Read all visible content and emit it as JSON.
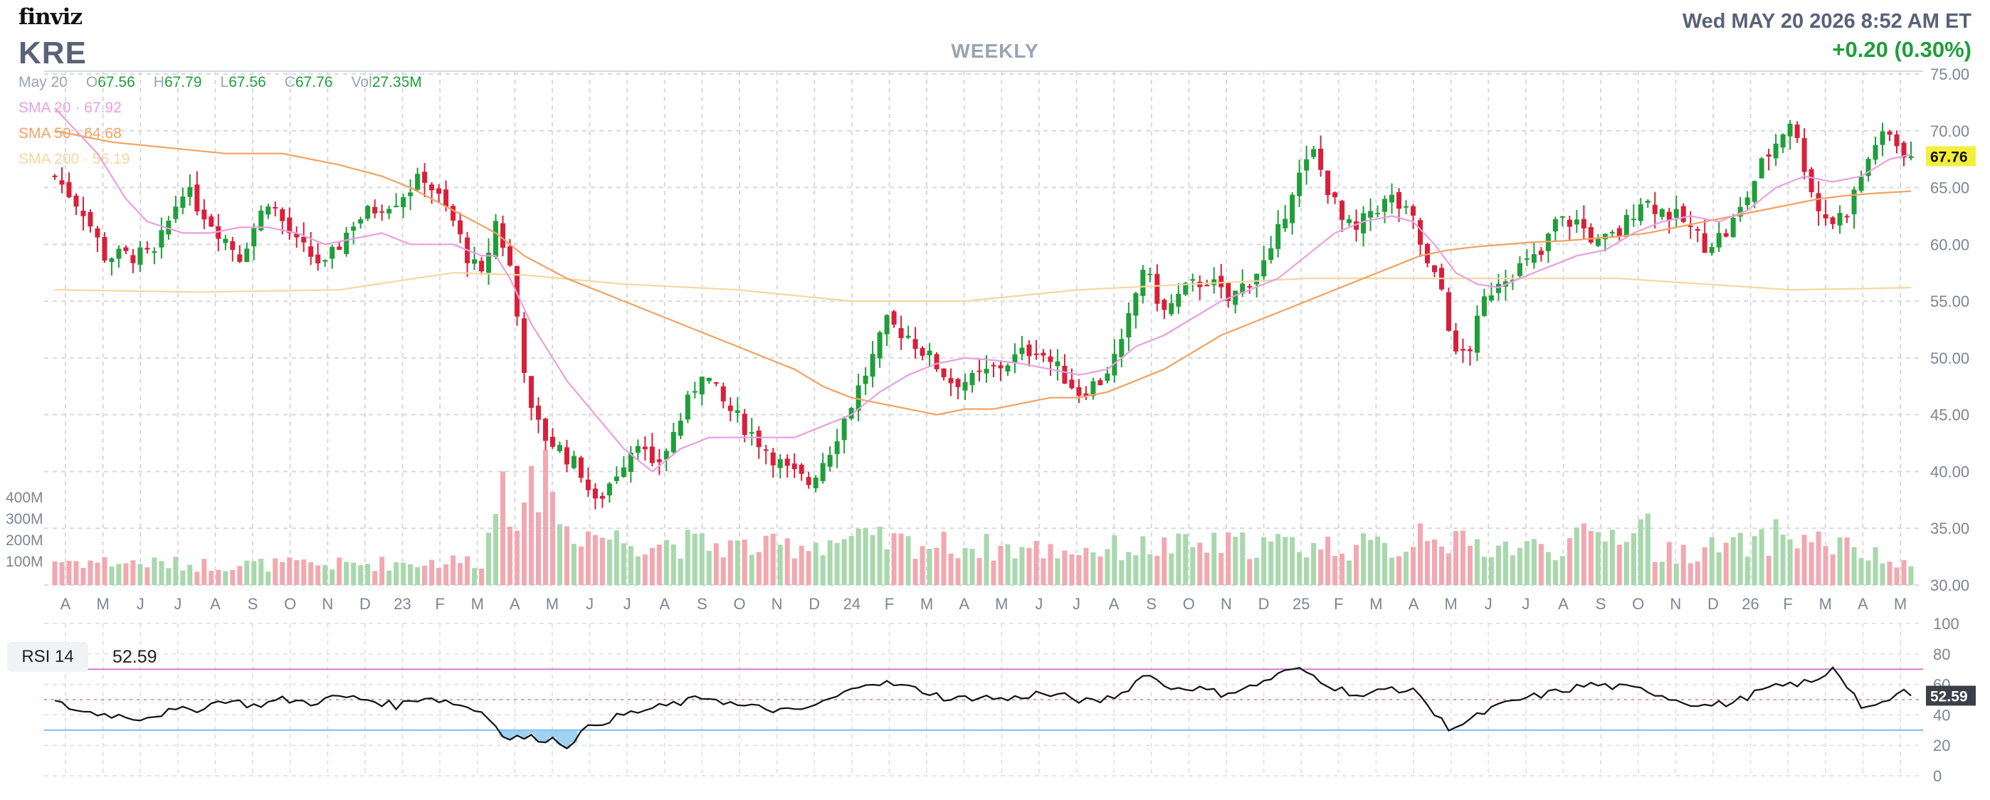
{
  "header": {
    "logo": "finviz",
    "ticker": "KRE",
    "timeframe": "WEEKLY",
    "datetime": "Wed MAY 20 2026 8:52 AM ET",
    "change": "+0.20 (0.30%)"
  },
  "ohlc": {
    "date": "May 20",
    "open_label": "O",
    "open": "67.56",
    "high_label": "H",
    "high": "67.79",
    "low_label": "L",
    "low": "67.56",
    "close_label": "C",
    "close": "67.76",
    "vol_label": "Vol",
    "vol": "27.35M"
  },
  "sma": {
    "sma20": "SMA 20 · 67.92",
    "sma50": "SMA 50 · 64.68",
    "sma200": "SMA 200 · 56.19"
  },
  "rsi": {
    "label": "RSI 14",
    "value": "52.59"
  },
  "colors": {
    "up": "#1f9e3a",
    "down": "#d8203a",
    "vol_up": "#a8d8ac",
    "vol_down": "#f2a8b0",
    "sma20": "#e8a0e0",
    "sma50": "#f5a160",
    "sma200": "#f5d7a0",
    "price_tag_bg": "#f4ef3a",
    "rsi_line": "#111111",
    "rsi_overbought": "#cf7fd6",
    "rsi_oversold": "#7fb9ef",
    "rsi_fill": "#8ec9ee"
  },
  "chart_data": [
    {
      "type": "candlestick",
      "title": "KRE",
      "interval": "WEEKLY",
      "ylim": [
        30,
        75
      ],
      "y_ticks": [
        "30.00",
        "35.00",
        "40.00",
        "45.00",
        "50.00",
        "55.00",
        "60.00",
        "65.00",
        "70.00",
        "75.00"
      ],
      "x_ticks": [
        "A",
        "M",
        "J",
        "J",
        "A",
        "S",
        "O",
        "N",
        "D",
        "23",
        "F",
        "M",
        "A",
        "M",
        "J",
        "J",
        "A",
        "S",
        "O",
        "N",
        "D",
        "24",
        "F",
        "M",
        "A",
        "M",
        "J",
        "J",
        "A",
        "S",
        "O",
        "N",
        "D",
        "25",
        "F",
        "M",
        "A",
        "M",
        "J",
        "J",
        "A",
        "S",
        "O",
        "N",
        "D",
        "26",
        "F",
        "M",
        "A",
        "M"
      ],
      "last_price_tag": "67.76",
      "volume_axis_labels": [
        "100M",
        "200M",
        "300M",
        "400M"
      ],
      "grid": true,
      "price_anchors": [
        [
          0,
          66
        ],
        [
          4,
          63
        ],
        [
          7,
          59
        ],
        [
          10,
          59
        ],
        [
          14,
          59
        ],
        [
          18,
          65
        ],
        [
          22,
          62
        ],
        [
          26,
          59
        ],
        [
          30,
          64
        ],
        [
          34,
          60
        ],
        [
          38,
          58
        ],
        [
          42,
          62
        ],
        [
          46,
          63.5
        ],
        [
          48,
          64
        ],
        [
          52,
          66
        ],
        [
          56,
          62
        ],
        [
          58,
          59
        ],
        [
          60,
          57
        ],
        [
          62,
          62
        ],
        [
          64,
          58
        ],
        [
          67,
          45
        ],
        [
          69,
          43
        ],
        [
          71,
          42
        ],
        [
          74,
          40
        ],
        [
          76,
          37
        ],
        [
          79,
          40
        ],
        [
          82,
          43
        ],
        [
          84,
          40
        ],
        [
          86,
          42
        ],
        [
          89,
          46
        ],
        [
          91,
          49
        ],
        [
          94,
          46
        ],
        [
          97,
          44
        ],
        [
          100,
          42
        ],
        [
          103,
          40
        ],
        [
          106,
          39
        ],
        [
          109,
          42
        ],
        [
          112,
          46
        ],
        [
          115,
          50
        ],
        [
          117,
          53
        ],
        [
          120,
          52
        ],
        [
          123,
          50
        ],
        [
          126,
          48
        ],
        [
          129,
          48
        ],
        [
          132,
          49
        ],
        [
          135,
          50
        ],
        [
          138,
          51
        ],
        [
          141,
          49
        ],
        [
          144,
          47
        ],
        [
          147,
          48
        ],
        [
          150,
          51
        ],
        [
          153,
          58
        ],
        [
          156,
          54
        ],
        [
          159,
          56
        ],
        [
          162,
          57
        ],
        [
          165,
          55
        ],
        [
          168,
          57
        ],
        [
          171,
          59
        ],
        [
          174,
          65
        ],
        [
          177,
          68
        ],
        [
          179,
          65
        ],
        [
          181,
          62
        ],
        [
          183,
          61
        ],
        [
          185,
          63
        ],
        [
          188,
          64
        ],
        [
          191,
          62
        ],
        [
          193,
          58
        ],
        [
          195,
          56
        ],
        [
          197,
          50
        ],
        [
          199,
          51
        ],
        [
          201,
          55
        ],
        [
          203,
          57
        ],
        [
          206,
          58
        ],
        [
          209,
          59
        ],
        [
          211,
          62
        ],
        [
          214,
          62
        ],
        [
          217,
          60
        ],
        [
          220,
          61
        ],
        [
          223,
          64
        ],
        [
          226,
          63
        ],
        [
          229,
          62
        ],
        [
          232,
          60
        ],
        [
          235,
          61
        ],
        [
          237,
          63
        ],
        [
          240,
          67
        ],
        [
          242,
          69
        ],
        [
          244,
          71
        ],
        [
          246,
          67
        ],
        [
          248,
          63
        ],
        [
          250,
          62
        ],
        [
          252,
          63
        ],
        [
          254,
          66
        ],
        [
          256,
          69
        ],
        [
          258,
          69.5
        ],
        [
          260,
          68.2
        ],
        [
          261,
          67.76
        ]
      ],
      "sma20_anchors": [
        [
          0,
          72
        ],
        [
          6,
          68
        ],
        [
          10,
          64
        ],
        [
          13,
          62
        ],
        [
          18,
          61
        ],
        [
          22,
          61
        ],
        [
          26,
          61.5
        ],
        [
          30,
          61.5
        ],
        [
          34,
          61
        ],
        [
          38,
          60
        ],
        [
          42,
          60.5
        ],
        [
          46,
          61
        ],
        [
          50,
          60
        ],
        [
          56,
          60
        ],
        [
          60,
          59
        ],
        [
          62,
          59
        ],
        [
          64,
          57
        ],
        [
          67,
          53
        ],
        [
          72,
          48
        ],
        [
          76,
          45
        ],
        [
          80,
          42
        ],
        [
          84,
          40
        ],
        [
          88,
          42
        ],
        [
          92,
          43
        ],
        [
          96,
          43
        ],
        [
          100,
          43
        ],
        [
          104,
          43
        ],
        [
          108,
          44
        ],
        [
          112,
          45
        ],
        [
          116,
          47
        ],
        [
          120,
          48.5
        ],
        [
          124,
          49.5
        ],
        [
          128,
          50
        ],
        [
          132,
          49.8
        ],
        [
          136,
          49.5
        ],
        [
          140,
          49
        ],
        [
          144,
          48.5
        ],
        [
          148,
          49
        ],
        [
          152,
          51
        ],
        [
          156,
          52
        ],
        [
          160,
          53.5
        ],
        [
          164,
          55
        ],
        [
          168,
          56
        ],
        [
          172,
          57
        ],
        [
          176,
          59
        ],
        [
          180,
          61
        ],
        [
          184,
          62
        ],
        [
          188,
          62.5
        ],
        [
          191,
          62
        ],
        [
          194,
          60
        ],
        [
          197,
          57.5
        ],
        [
          200,
          56.5
        ],
        [
          203,
          56.2
        ],
        [
          206,
          57
        ],
        [
          210,
          58
        ],
        [
          214,
          59
        ],
        [
          218,
          59.5
        ],
        [
          222,
          61
        ],
        [
          226,
          62
        ],
        [
          230,
          62.5
        ],
        [
          234,
          62
        ],
        [
          238,
          63
        ],
        [
          242,
          65
        ],
        [
          246,
          66
        ],
        [
          250,
          65.5
        ],
        [
          254,
          66
        ],
        [
          258,
          67.5
        ],
        [
          261,
          67.92
        ]
      ],
      "sma50_anchors": [
        [
          0,
          70
        ],
        [
          8,
          69
        ],
        [
          16,
          68.5
        ],
        [
          24,
          68
        ],
        [
          32,
          68
        ],
        [
          40,
          67
        ],
        [
          46,
          66
        ],
        [
          50,
          65
        ],
        [
          56,
          63
        ],
        [
          62,
          61
        ],
        [
          66,
          59
        ],
        [
          72,
          57
        ],
        [
          80,
          55
        ],
        [
          88,
          53
        ],
        [
          96,
          51
        ],
        [
          104,
          49
        ],
        [
          108,
          47.5
        ],
        [
          112,
          46.5
        ],
        [
          116,
          46
        ],
        [
          120,
          45.5
        ],
        [
          124,
          45
        ],
        [
          128,
          45.5
        ],
        [
          132,
          45.5
        ],
        [
          136,
          46
        ],
        [
          140,
          46.5
        ],
        [
          144,
          46.5
        ],
        [
          148,
          47
        ],
        [
          152,
          48
        ],
        [
          156,
          49
        ],
        [
          160,
          50.5
        ],
        [
          164,
          52
        ],
        [
          168,
          53
        ],
        [
          172,
          54
        ],
        [
          176,
          55
        ],
        [
          180,
          56
        ],
        [
          184,
          57
        ],
        [
          188,
          58
        ],
        [
          192,
          59
        ],
        [
          196,
          59.5
        ],
        [
          200,
          59.8
        ],
        [
          204,
          60
        ],
        [
          208,
          60.2
        ],
        [
          212,
          60.3
        ],
        [
          216,
          60.5
        ],
        [
          220,
          60.7
        ],
        [
          224,
          61
        ],
        [
          228,
          61.5
        ],
        [
          232,
          62
        ],
        [
          236,
          62.5
        ],
        [
          240,
          63
        ],
        [
          244,
          63.5
        ],
        [
          248,
          64
        ],
        [
          252,
          64.3
        ],
        [
          256,
          64.5
        ],
        [
          261,
          64.68
        ]
      ],
      "sma200_anchors": [
        [
          0,
          56
        ],
        [
          20,
          55.8
        ],
        [
          40,
          56
        ],
        [
          56,
          57.5
        ],
        [
          66,
          57.3
        ],
        [
          80,
          56.5
        ],
        [
          96,
          56
        ],
        [
          112,
          55
        ],
        [
          128,
          55
        ],
        [
          144,
          56
        ],
        [
          160,
          56.5
        ],
        [
          176,
          57
        ],
        [
          192,
          57
        ],
        [
          208,
          57
        ],
        [
          220,
          57
        ],
        [
          232,
          56.5
        ],
        [
          244,
          56
        ],
        [
          254,
          56.1
        ],
        [
          261,
          56.19
        ]
      ],
      "volume_anchors": [
        [
          0,
          0.12
        ],
        [
          20,
          0.1
        ],
        [
          40,
          0.1
        ],
        [
          60,
          0.12
        ],
        [
          62,
          0.35
        ],
        [
          63,
          0.7
        ],
        [
          64,
          0.45
        ],
        [
          66,
          0.3
        ],
        [
          68,
          0.55
        ],
        [
          69,
          0.9
        ],
        [
          70,
          0.4
        ],
        [
          72,
          0.28
        ],
        [
          80,
          0.22
        ],
        [
          100,
          0.18
        ],
        [
          110,
          0.22
        ],
        [
          140,
          0.17
        ],
        [
          170,
          0.2
        ],
        [
          190,
          0.18
        ],
        [
          192,
          0.28
        ],
        [
          193,
          0.28
        ],
        [
          194,
          0.3
        ],
        [
          196,
          0.2
        ],
        [
          210,
          0.18
        ],
        [
          222,
          0.28
        ],
        [
          224,
          0.3
        ],
        [
          225,
          0.15
        ],
        [
          240,
          0.2
        ],
        [
          242,
          0.25
        ],
        [
          250,
          0.2
        ],
        [
          261,
          0.08
        ]
      ]
    },
    {
      "type": "line",
      "title": "RSI 14",
      "ylim": [
        0,
        100
      ],
      "y_ticks": [
        "0",
        "20",
        "40",
        "60",
        "80",
        "100"
      ],
      "overbought": 70,
      "oversold": 30,
      "current_value": "52.59",
      "rsi_anchors": [
        [
          0,
          48
        ],
        [
          4,
          42
        ],
        [
          8,
          40
        ],
        [
          12,
          38
        ],
        [
          16,
          42
        ],
        [
          20,
          44
        ],
        [
          24,
          50
        ],
        [
          28,
          46
        ],
        [
          32,
          50
        ],
        [
          36,
          48
        ],
        [
          40,
          52
        ],
        [
          44,
          50
        ],
        [
          48,
          46
        ],
        [
          52,
          52
        ],
        [
          56,
          48
        ],
        [
          60,
          42
        ],
        [
          62,
          35
        ],
        [
          63,
          25
        ],
        [
          66,
          25
        ],
        [
          70,
          24
        ],
        [
          72,
          20
        ],
        [
          74,
          28
        ],
        [
          76,
          34
        ],
        [
          80,
          40
        ],
        [
          84,
          44
        ],
        [
          88,
          48
        ],
        [
          92,
          52
        ],
        [
          96,
          46
        ],
        [
          100,
          44
        ],
        [
          104,
          42
        ],
        [
          108,
          48
        ],
        [
          112,
          56
        ],
        [
          114,
          62
        ],
        [
          118,
          60
        ],
        [
          122,
          56
        ],
        [
          126,
          50
        ],
        [
          130,
          52
        ],
        [
          134,
          50
        ],
        [
          138,
          54
        ],
        [
          142,
          52
        ],
        [
          146,
          48
        ],
        [
          150,
          54
        ],
        [
          152,
          62
        ],
        [
          154,
          68
        ],
        [
          156,
          58
        ],
        [
          160,
          58
        ],
        [
          164,
          54
        ],
        [
          168,
          58
        ],
        [
          172,
          66
        ],
        [
          174,
          70
        ],
        [
          176,
          68
        ],
        [
          180,
          58
        ],
        [
          184,
          52
        ],
        [
          188,
          58
        ],
        [
          192,
          54
        ],
        [
          194,
          40
        ],
        [
          196,
          32
        ],
        [
          198,
          34
        ],
        [
          202,
          44
        ],
        [
          206,
          50
        ],
        [
          210,
          54
        ],
        [
          214,
          58
        ],
        [
          216,
          60
        ],
        [
          220,
          58
        ],
        [
          224,
          56
        ],
        [
          228,
          50
        ],
        [
          232,
          46
        ],
        [
          236,
          48
        ],
        [
          240,
          56
        ],
        [
          244,
          60
        ],
        [
          248,
          62
        ],
        [
          250,
          72
        ],
        [
          252,
          60
        ],
        [
          254,
          46
        ],
        [
          256,
          44
        ],
        [
          258,
          50
        ],
        [
          260,
          56
        ],
        [
          261,
          52.59
        ]
      ]
    }
  ]
}
